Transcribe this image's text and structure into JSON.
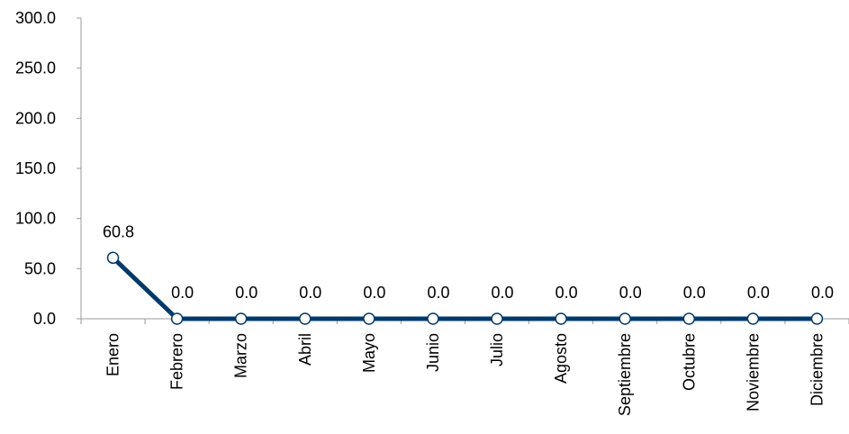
{
  "chart_data": {
    "type": "line",
    "categories": [
      "Enero",
      "Febrero",
      "Marzo",
      "Abril",
      "Mayo",
      "Junio",
      "Julio",
      "Agosto",
      "Septiembre",
      "Octubre",
      "Noviembre",
      "Diciembre"
    ],
    "series": [
      {
        "color": "#003a6b",
        "values": [
          60.8,
          0,
          0,
          0,
          0,
          0,
          0,
          0,
          0,
          0,
          0,
          0
        ],
        "value_labels": [
          "60.8",
          "0.0",
          "0.0",
          "0.0",
          "0.0",
          "0.0",
          "0.0",
          "0.0",
          "0.0",
          "0.0",
          "0.0",
          "0.0"
        ]
      }
    ],
    "ylim": [
      0,
      300
    ],
    "yticks": [
      {
        "value": 0,
        "label": "0.0"
      },
      {
        "value": 50,
        "label": "50.0"
      },
      {
        "value": 100,
        "label": "100.0"
      },
      {
        "value": 150,
        "label": "150.0"
      },
      {
        "value": 200,
        "label": "200.0"
      },
      {
        "value": 250,
        "label": "250.0"
      },
      {
        "value": 300,
        "label": "300.0"
      }
    ]
  }
}
